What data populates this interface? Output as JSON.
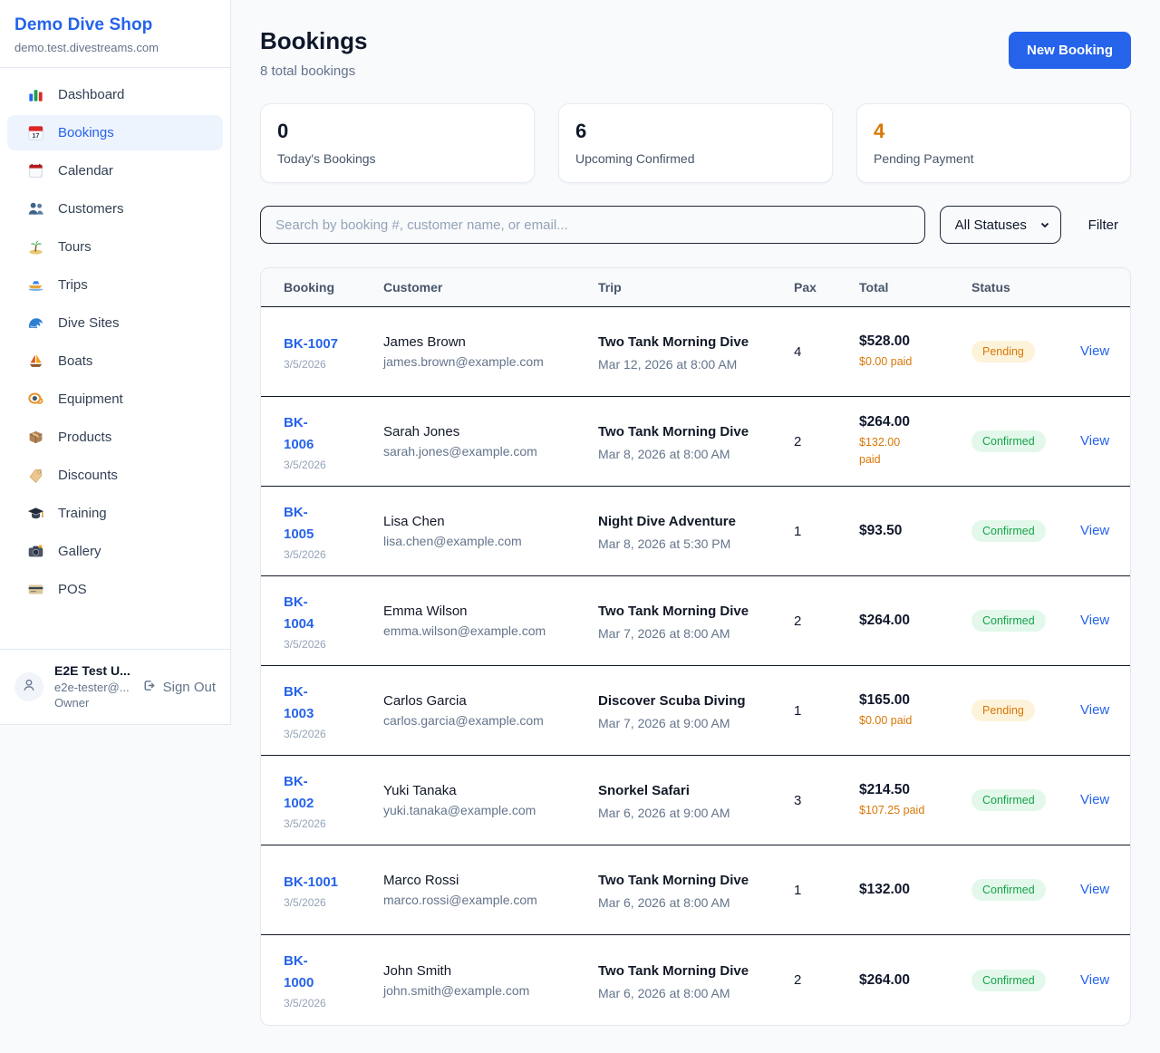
{
  "colors": {
    "accent_blue": "#2563eb",
    "pending_text": "#d97706",
    "pending_bg": "#fdf3da",
    "confirmed_text": "#16a34a",
    "confirmed_bg": "#e3f8eb",
    "paid_orange": "#d97706"
  },
  "sidebar": {
    "title": "Demo Dive Shop",
    "domain": "demo.test.divestreams.com",
    "items": [
      {
        "key": "dashboard",
        "icon": "bar-chart-icon",
        "label": "Dashboard",
        "active": false
      },
      {
        "key": "bookings",
        "icon": "calendar-date-icon",
        "label": "Bookings",
        "active": true
      },
      {
        "key": "calendar",
        "icon": "tear-calendar-icon",
        "label": "Calendar",
        "active": false
      },
      {
        "key": "customers",
        "icon": "people-icon",
        "label": "Customers",
        "active": false
      },
      {
        "key": "tours",
        "icon": "island-icon",
        "label": "Tours",
        "active": false
      },
      {
        "key": "trips",
        "icon": "speedboat-icon",
        "label": "Trips",
        "active": false
      },
      {
        "key": "dive-sites",
        "icon": "wave-icon",
        "label": "Dive Sites",
        "active": false
      },
      {
        "key": "boats",
        "icon": "sailboat-icon",
        "label": "Boats",
        "active": false
      },
      {
        "key": "equipment",
        "icon": "dive-mask-icon",
        "label": "Equipment",
        "active": false
      },
      {
        "key": "products",
        "icon": "package-icon",
        "label": "Products",
        "active": false
      },
      {
        "key": "discounts",
        "icon": "tag-icon",
        "label": "Discounts",
        "active": false
      },
      {
        "key": "training",
        "icon": "grad-cap-icon",
        "label": "Training",
        "active": false
      },
      {
        "key": "gallery",
        "icon": "camera-icon",
        "label": "Gallery",
        "active": false
      },
      {
        "key": "pos",
        "icon": "credit-card-icon",
        "label": "POS",
        "active": false
      }
    ],
    "user": {
      "name": "E2E Test U...",
      "email": "e2e-tester@...",
      "role": "Owner",
      "sign_out_label": "Sign Out"
    }
  },
  "header": {
    "title": "Bookings",
    "subtitle": "8 total bookings",
    "new_booking_label": "New Booking"
  },
  "stats": [
    {
      "value": "0",
      "label": "Today's Bookings",
      "value_color": "#0f172a"
    },
    {
      "value": "6",
      "label": "Upcoming Confirmed",
      "value_color": "#0f172a"
    },
    {
      "value": "4",
      "label": "Pending Payment",
      "value_color": "#d97706"
    }
  ],
  "filters": {
    "search_placeholder": "Search by booking #, customer name, or email...",
    "search_value": "",
    "status_selected": "All Statuses",
    "filter_label": "Filter"
  },
  "table": {
    "columns": [
      "Booking",
      "Customer",
      "Trip",
      "Pax",
      "Total",
      "Status"
    ],
    "rows": [
      {
        "id": "BK-1007",
        "date": "3/5/2026",
        "customer": "James Brown",
        "email": "james.brown@example.com",
        "trip": "Two Tank Morning Dive",
        "datetime": "Mar 12, 2026 at 8:00 AM",
        "pax": "4",
        "total": "$528.00",
        "paid": "$0.00 paid",
        "status": "Pending",
        "action": "View"
      },
      {
        "id": "BK-\n1006",
        "date": "3/5/2026",
        "customer": "Sarah Jones",
        "email": "sarah.jones@example.com",
        "trip": "Two Tank Morning Dive",
        "datetime": "Mar 8, 2026 at 8:00 AM",
        "pax": "2",
        "total": "$264.00",
        "paid": "$132.00\npaid",
        "status": "Confirmed",
        "action": "View"
      },
      {
        "id": "BK-\n1005",
        "date": "3/5/2026",
        "customer": "Lisa Chen",
        "email": "lisa.chen@example.com",
        "trip": "Night Dive Adventure",
        "datetime": "Mar 8, 2026 at 5:30 PM",
        "pax": "1",
        "total": "$93.50",
        "paid": "",
        "status": "Confirmed",
        "action": "View"
      },
      {
        "id": "BK-\n1004",
        "date": "3/5/2026",
        "customer": "Emma Wilson",
        "email": "emma.wilson@example.com",
        "trip": "Two Tank Morning Dive",
        "datetime": "Mar 7, 2026 at 8:00 AM",
        "pax": "2",
        "total": "$264.00",
        "paid": "",
        "status": "Confirmed",
        "action": "View"
      },
      {
        "id": "BK-\n1003",
        "date": "3/5/2026",
        "customer": "Carlos Garcia",
        "email": "carlos.garcia@example.com",
        "trip": "Discover Scuba Diving",
        "datetime": "Mar 7, 2026 at 9:00 AM",
        "pax": "1",
        "total": "$165.00",
        "paid": "$0.00 paid",
        "status": "Pending",
        "action": "View"
      },
      {
        "id": "BK-\n1002",
        "date": "3/5/2026",
        "customer": "Yuki Tanaka",
        "email": "yuki.tanaka@example.com",
        "trip": "Snorkel Safari",
        "datetime": "Mar 6, 2026 at 9:00 AM",
        "pax": "3",
        "total": "$214.50",
        "paid": "$107.25 paid",
        "status": "Confirmed",
        "action": "View"
      },
      {
        "id": "BK-1001",
        "date": "3/5/2026",
        "customer": "Marco Rossi",
        "email": "marco.rossi@example.com",
        "trip": "Two Tank Morning Dive",
        "datetime": "Mar 6, 2026 at 8:00 AM",
        "pax": "1",
        "total": "$132.00",
        "paid": "",
        "status": "Confirmed",
        "action": "View"
      },
      {
        "id": "BK-\n1000",
        "date": "3/5/2026",
        "customer": "John Smith",
        "email": "john.smith@example.com",
        "trip": "Two Tank Morning Dive",
        "datetime": "Mar 6, 2026 at 8:00 AM",
        "pax": "2",
        "total": "$264.00",
        "paid": "",
        "status": "Confirmed",
        "action": "View"
      }
    ]
  }
}
